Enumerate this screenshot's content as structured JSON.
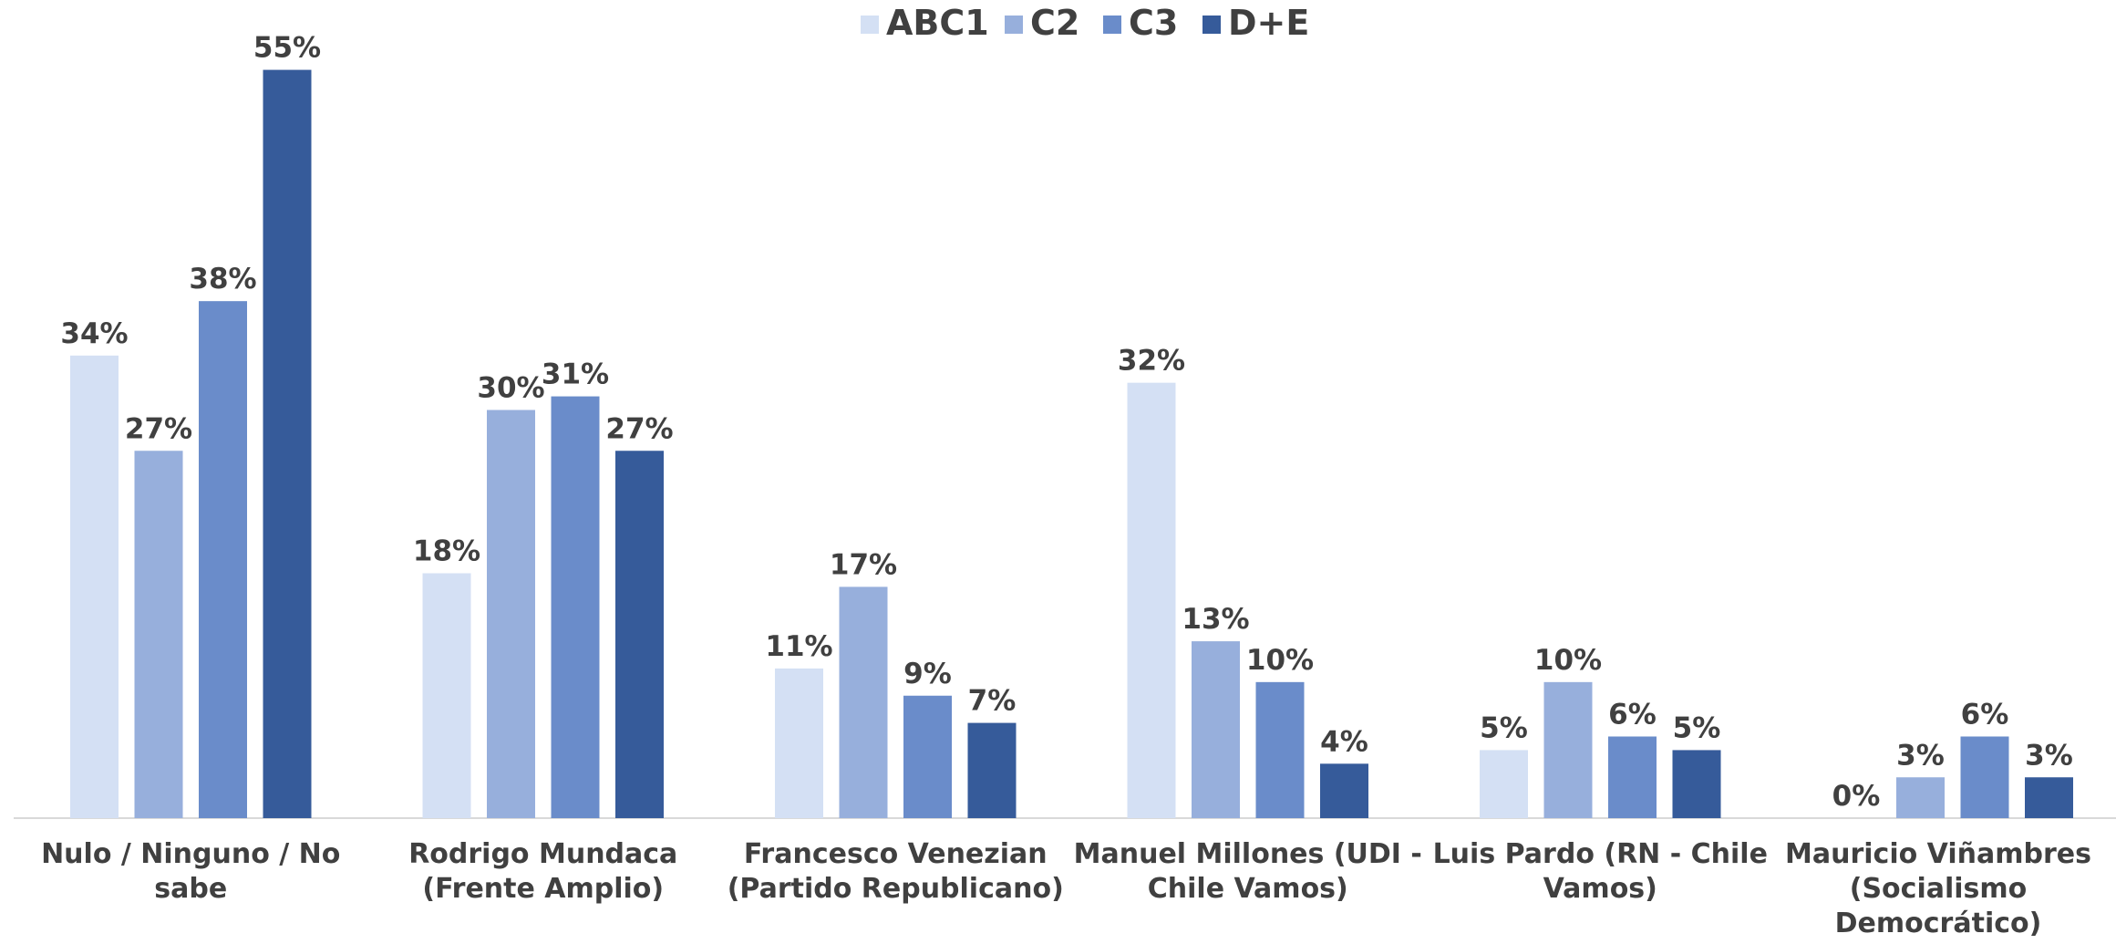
{
  "chart_data": {
    "type": "bar",
    "categories": [
      "Nulo / Ninguno / No sabe",
      "Rodrigo Mundaca (Frente Amplio)",
      "Francesco Venezian (Partido Republicano)",
      "Manuel Millones (UDI - Chile Vamos)",
      "Luis Pardo (RN - Chile Vamos)",
      "Mauricio Viñambres (Socialismo Democrático)"
    ],
    "series": [
      {
        "name": "ABC1",
        "color": "#d4e0f4",
        "values": [
          34,
          18,
          11,
          32,
          5,
          0
        ],
        "value_labels": [
          "34%",
          "18%",
          "11%",
          "32%",
          "5%",
          "0%"
        ]
      },
      {
        "name": "C2",
        "color": "#97afdc",
        "values": [
          27,
          30,
          17,
          13,
          10,
          3
        ],
        "value_labels": [
          "27%",
          "30%",
          "17%",
          "13%",
          "10%",
          "3%"
        ]
      },
      {
        "name": "C3",
        "color": "#6a8cca",
        "values": [
          38,
          31,
          9,
          10,
          6,
          6
        ],
        "value_labels": [
          "38%",
          "31%",
          "9%",
          "10%",
          "6%",
          "6%"
        ]
      },
      {
        "name": "D+E",
        "color": "#365b9a",
        "values": [
          55,
          27,
          7,
          4,
          5,
          3
        ],
        "value_labels": [
          "55%",
          "27%",
          "7%",
          "4%",
          "5%",
          "3%"
        ]
      }
    ],
    "ylim": [
      0,
      60
    ],
    "legend": "top"
  }
}
